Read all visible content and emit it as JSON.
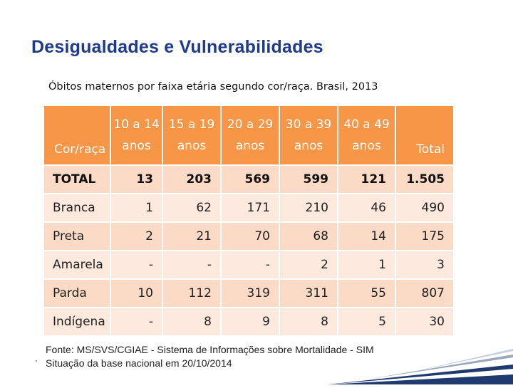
{
  "slide": {
    "title": "Desigualdades e Vulnerabilidades",
    "subtitle": "Óbitos maternos por faixa etária segundo cor/raça. Brasil, 2013"
  },
  "table": {
    "headers": [
      "Cor/raça",
      "10 a 14 anos",
      "15 a 19 anos",
      "20 a 29 anos",
      "30 a 39 anos",
      "40 a 49 anos",
      "Total"
    ],
    "rows": [
      [
        "TOTAL",
        "13",
        "203",
        "569",
        "599",
        "121",
        "1.505"
      ],
      [
        "Branca",
        "1",
        "62",
        "171",
        "210",
        "46",
        "490"
      ],
      [
        "Preta",
        "2",
        "21",
        "70",
        "68",
        "14",
        "175"
      ],
      [
        "Amarela",
        "-",
        "-",
        "-",
        "2",
        "1",
        "3"
      ],
      [
        "Parda",
        "10",
        "112",
        "319",
        "311",
        "55",
        "807"
      ],
      [
        "Indígena",
        "-",
        "8",
        "9",
        "8",
        "5",
        "30"
      ]
    ]
  },
  "source": {
    "line1": "Fonte: MS/SVS/CGIAE - Sistema de Informações sobre Mortalidade - SIM",
    "line2": "Situação da base nacional em 20/10/2014"
  },
  "colors": {
    "header": "#f79646",
    "title": "#1f3a8a",
    "stripe": "#1f3a6e"
  }
}
